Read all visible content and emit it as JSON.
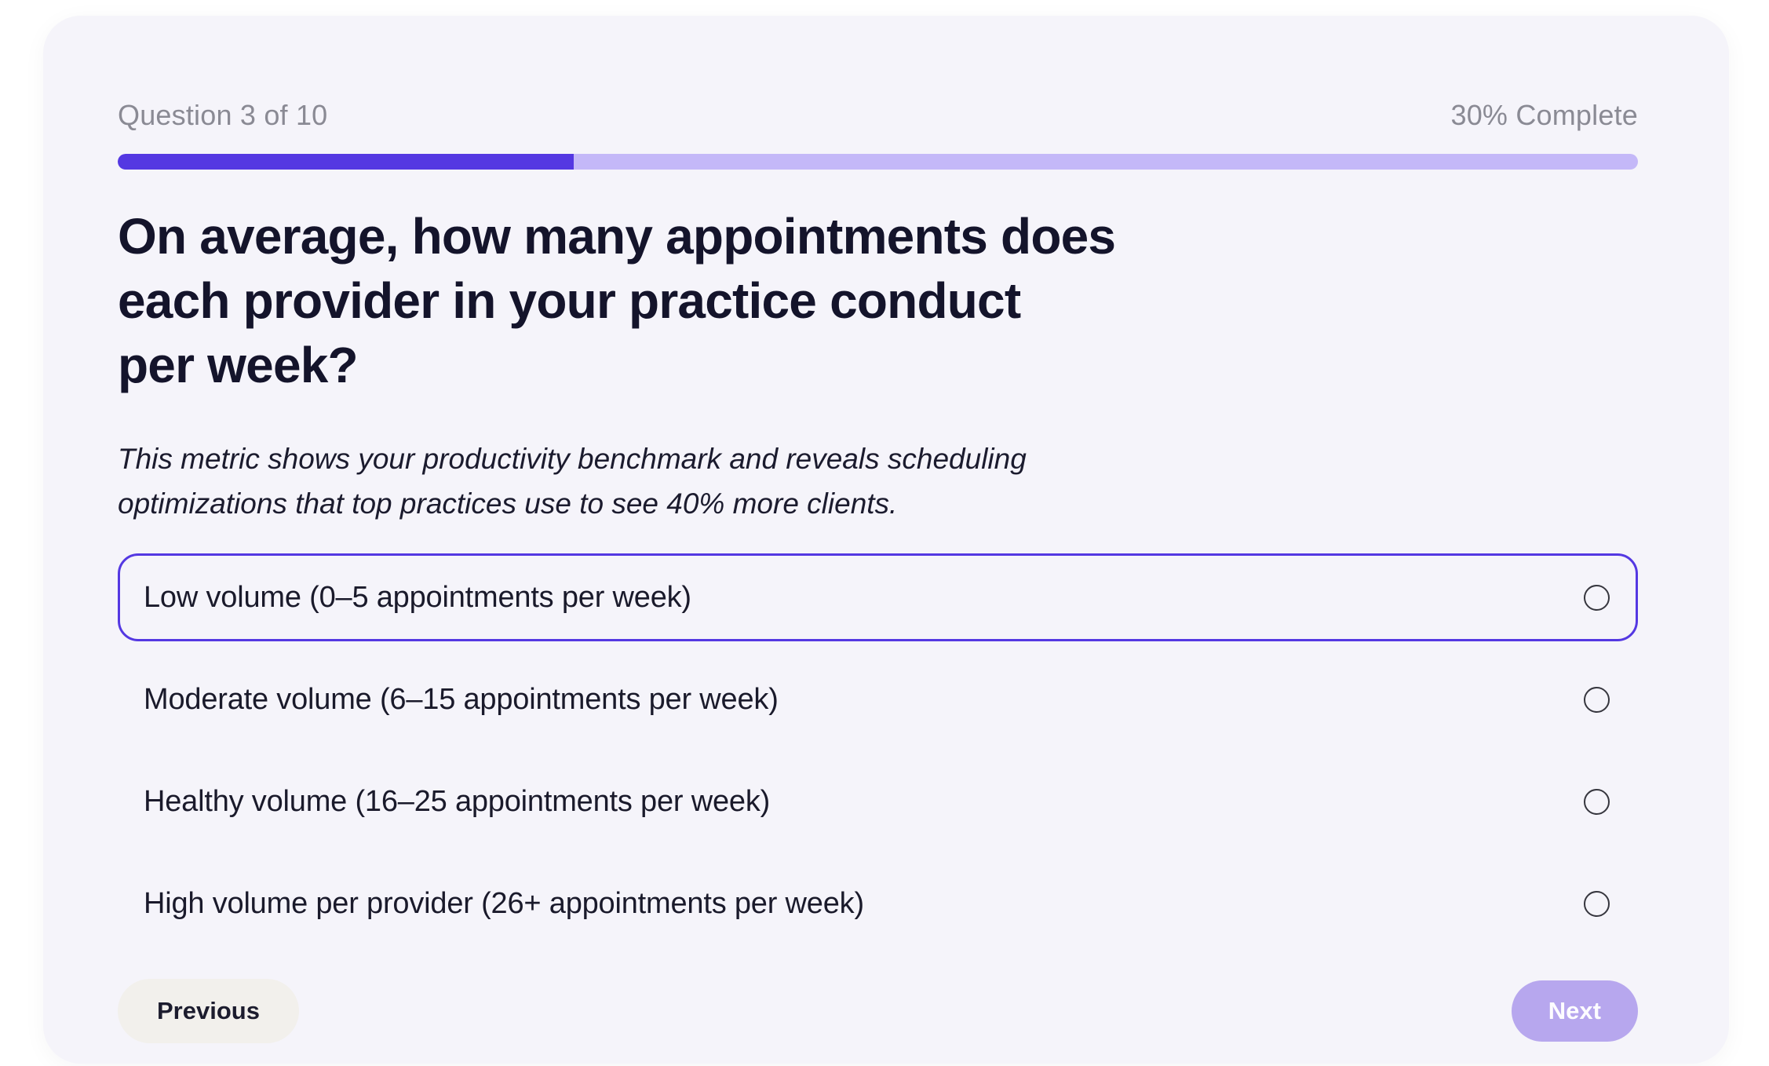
{
  "header": {
    "question_counter": "Question 3 of 10",
    "progress_label": "30% Complete"
  },
  "progress": {
    "percent": 30
  },
  "question": {
    "lines": [
      "On average, how many appointments does",
      "each provider in your practice conduct",
      "per week?"
    ]
  },
  "description": {
    "lines": [
      "This metric shows your productivity benchmark and reveals scheduling",
      "optimizations that top practices use to see 40% more clients."
    ]
  },
  "options": [
    {
      "label": "Low volume (0–5 appointments per week)"
    },
    {
      "label": "Moderate volume (6–15 appointments per week)"
    },
    {
      "label": "Healthy volume (16–25 appointments per week)"
    },
    {
      "label": "High volume per provider (26+ appointments per week)"
    }
  ],
  "footer": {
    "previous_label": "Previous",
    "next_label": "Next"
  },
  "colors": {
    "accent": "#5438e2",
    "progress_track": "#c4b8f8",
    "card_background": "#f5f4fa",
    "next_button_background": "#b7a7ee",
    "previous_button_background": "#f2f0ec"
  }
}
